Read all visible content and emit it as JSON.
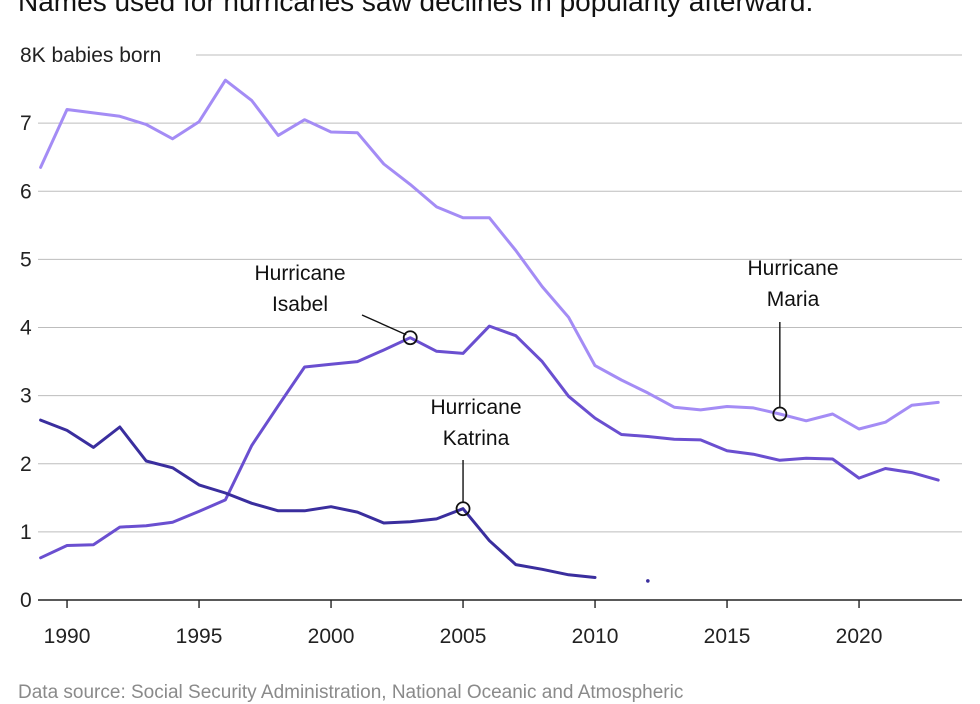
{
  "title": "Names used for hurricanes saw declines in popularity afterward.",
  "source": "Data source: Social Security Administration, National Oceanic and Atmospheric",
  "colors": {
    "maria": "#a48cf5",
    "isabel": "#6a4fd0",
    "katrina": "#3a2e9e"
  },
  "chart_data": {
    "type": "line",
    "title": "Names used for hurricanes saw declines in popularity afterward.",
    "ylabel": "8K babies born",
    "y_unit_label": "8K babies born",
    "ylim": [
      0,
      8
    ],
    "y_ticks": [
      0,
      1,
      2,
      3,
      4,
      5,
      6,
      7,
      8
    ],
    "y_tick_labels": [
      "0",
      "1",
      "2",
      "3",
      "4",
      "5",
      "6",
      "7",
      ""
    ],
    "xlim": [
      1988.9,
      2023.9
    ],
    "x_ticks": [
      1990,
      1995,
      2000,
      2005,
      2010,
      2015,
      2020
    ],
    "x_tick_labels": [
      "1990",
      "1995",
      "2000",
      "2005",
      "2010",
      "2015",
      "2020"
    ],
    "grid": true,
    "series": [
      {
        "name": "Maria",
        "color": "#a48cf5",
        "points": [
          [
            1989,
            6.35
          ],
          [
            1990,
            7.2
          ],
          [
            1991,
            7.15
          ],
          [
            1992,
            7.1
          ],
          [
            1993,
            6.98
          ],
          [
            1994,
            6.77
          ],
          [
            1995,
            7.02
          ],
          [
            1996,
            7.63
          ],
          [
            1997,
            7.33
          ],
          [
            1998,
            6.82
          ],
          [
            1999,
            7.05
          ],
          [
            2000,
            6.87
          ],
          [
            2001,
            6.86
          ],
          [
            2002,
            6.4
          ],
          [
            2003,
            6.1
          ],
          [
            2004,
            5.77
          ],
          [
            2005,
            5.61
          ],
          [
            2006,
            5.61
          ],
          [
            2007,
            5.13
          ],
          [
            2008,
            4.6
          ],
          [
            2009,
            4.15
          ],
          [
            2010,
            3.44
          ],
          [
            2011,
            3.23
          ],
          [
            2012,
            3.04
          ],
          [
            2013,
            2.83
          ],
          [
            2014,
            2.79
          ],
          [
            2015,
            2.84
          ],
          [
            2016,
            2.82
          ],
          [
            2017,
            2.73
          ],
          [
            2018,
            2.63
          ],
          [
            2019,
            2.73
          ],
          [
            2020,
            2.51
          ],
          [
            2021,
            2.61
          ],
          [
            2022,
            2.86
          ],
          [
            2023,
            2.9
          ]
        ]
      },
      {
        "name": "Isabel",
        "color": "#6a4fd0",
        "points": [
          [
            1989,
            0.62
          ],
          [
            1990,
            0.8
          ],
          [
            1991,
            0.81
          ],
          [
            1992,
            1.07
          ],
          [
            1993,
            1.09
          ],
          [
            1994,
            1.14
          ],
          [
            1995,
            1.3
          ],
          [
            1996,
            1.47
          ],
          [
            1997,
            2.27
          ],
          [
            1998,
            2.85
          ],
          [
            1999,
            3.42
          ],
          [
            2000,
            3.46
          ],
          [
            2001,
            3.5
          ],
          [
            2002,
            3.67
          ],
          [
            2003,
            3.85
          ],
          [
            2004,
            3.65
          ],
          [
            2005,
            3.62
          ],
          [
            2006,
            4.02
          ],
          [
            2007,
            3.88
          ],
          [
            2008,
            3.5
          ],
          [
            2009,
            2.99
          ],
          [
            2010,
            2.67
          ],
          [
            2011,
            2.43
          ],
          [
            2012,
            2.4
          ],
          [
            2013,
            2.36
          ],
          [
            2014,
            2.35
          ],
          [
            2015,
            2.19
          ],
          [
            2016,
            2.14
          ],
          [
            2017,
            2.05
          ],
          [
            2018,
            2.08
          ],
          [
            2019,
            2.07
          ],
          [
            2020,
            1.79
          ],
          [
            2021,
            1.93
          ],
          [
            2022,
            1.87
          ],
          [
            2023,
            1.76
          ]
        ]
      },
      {
        "name": "Katrina",
        "color": "#3a2e9e",
        "points": [
          [
            1989,
            2.64
          ],
          [
            1990,
            2.49
          ],
          [
            1991,
            2.24
          ],
          [
            1992,
            2.54
          ],
          [
            1993,
            2.04
          ],
          [
            1994,
            1.94
          ],
          [
            1995,
            1.69
          ],
          [
            1996,
            1.57
          ],
          [
            1997,
            1.42
          ],
          [
            1998,
            1.31
          ],
          [
            1999,
            1.31
          ],
          [
            2000,
            1.37
          ],
          [
            2001,
            1.29
          ],
          [
            2002,
            1.13
          ],
          [
            2003,
            1.15
          ],
          [
            2004,
            1.19
          ],
          [
            2005,
            1.34
          ],
          [
            2006,
            0.87
          ],
          [
            2007,
            0.52
          ],
          [
            2008,
            0.45
          ],
          [
            2009,
            0.37
          ],
          [
            2010,
            0.33
          ]
        ],
        "isolated_points": [
          [
            2012,
            0.28
          ]
        ]
      }
    ],
    "annotations": [
      {
        "series": "Isabel",
        "year": 2003,
        "value": 3.85,
        "line1": "Hurricane",
        "line2": "Isabel"
      },
      {
        "series": "Katrina",
        "year": 2005,
        "value": 1.34,
        "line1": "Hurricane",
        "line2": "Katrina"
      },
      {
        "series": "Maria",
        "year": 2017,
        "value": 2.73,
        "line1": "Hurricane",
        "line2": "Maria"
      }
    ]
  }
}
